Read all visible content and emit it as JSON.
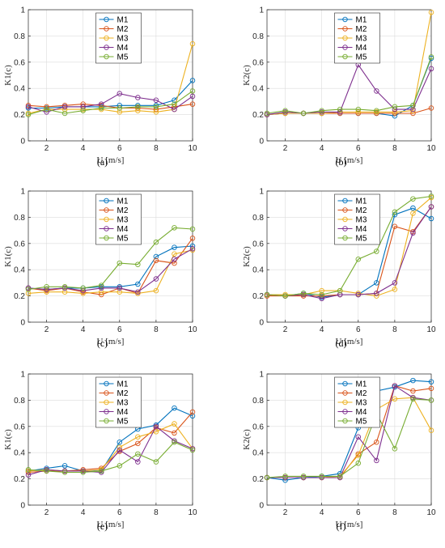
{
  "colors": [
    "#0072BD",
    "#D95319",
    "#EDB120",
    "#7E2F8E",
    "#77AC30"
  ],
  "chart_data": [
    {
      "type": "line",
      "panel": "(a)",
      "xlabel": "U [m/s]",
      "ylabel": "K1(c)",
      "xlim": [
        1,
        10
      ],
      "ylim": [
        0,
        1
      ],
      "xticks": [
        2,
        4,
        6,
        8,
        10
      ],
      "yticks": [
        0,
        0.2,
        0.4,
        0.6,
        0.8,
        1
      ],
      "grid": true,
      "legend": "top-center",
      "x": [
        1,
        2,
        3,
        4,
        5,
        6,
        7,
        8,
        9,
        10
      ],
      "series": [
        {
          "name": "M1",
          "values": [
            0.25,
            0.25,
            0.26,
            0.26,
            0.26,
            0.27,
            0.27,
            0.27,
            0.31,
            0.46
          ]
        },
        {
          "name": "M2",
          "values": [
            0.27,
            0.26,
            0.27,
            0.28,
            0.27,
            0.25,
            0.25,
            0.24,
            0.26,
            0.28
          ]
        },
        {
          "name": "M3",
          "values": [
            0.21,
            0.24,
            0.24,
            0.24,
            0.24,
            0.22,
            0.23,
            0.22,
            0.24,
            0.74
          ]
        },
        {
          "name": "M4",
          "values": [
            0.26,
            0.22,
            0.26,
            0.26,
            0.28,
            0.36,
            0.33,
            0.31,
            0.24,
            0.34
          ]
        },
        {
          "name": "M5",
          "values": [
            0.2,
            0.24,
            0.21,
            0.23,
            0.25,
            0.25,
            0.26,
            0.26,
            0.28,
            0.38
          ]
        }
      ]
    },
    {
      "type": "line",
      "panel": "(b)",
      "xlabel": "U [m/s]",
      "ylabel": "K2(c)",
      "xlim": [
        1,
        10
      ],
      "ylim": [
        0,
        1
      ],
      "xticks": [
        2,
        4,
        6,
        8,
        10
      ],
      "yticks": [
        0,
        0.2,
        0.4,
        0.6,
        0.8,
        1
      ],
      "grid": true,
      "legend": "top-center",
      "x": [
        1,
        2,
        3,
        4,
        5,
        6,
        7,
        8,
        9,
        10
      ],
      "series": [
        {
          "name": "M1",
          "values": [
            0.2,
            0.21,
            0.21,
            0.21,
            0.21,
            0.21,
            0.21,
            0.19,
            0.27,
            0.63
          ]
        },
        {
          "name": "M2",
          "values": [
            0.2,
            0.21,
            0.21,
            0.21,
            0.21,
            0.21,
            0.21,
            0.21,
            0.21,
            0.25
          ]
        },
        {
          "name": "M3",
          "values": [
            0.2,
            0.21,
            0.21,
            0.21,
            0.22,
            0.22,
            0.22,
            0.22,
            0.23,
            0.98
          ]
        },
        {
          "name": "M4",
          "values": [
            0.2,
            0.22,
            0.21,
            0.22,
            0.22,
            0.58,
            0.38,
            0.24,
            0.24,
            0.55
          ]
        },
        {
          "name": "M5",
          "values": [
            0.21,
            0.23,
            0.21,
            0.23,
            0.24,
            0.24,
            0.23,
            0.26,
            0.27,
            0.64
          ]
        }
      ]
    },
    {
      "type": "line",
      "panel": "(c)",
      "xlabel": "U [m/s]",
      "ylabel": "K1(c)",
      "xlim": [
        1,
        10
      ],
      "ylim": [
        0,
        1
      ],
      "xticks": [
        2,
        4,
        6,
        8,
        10
      ],
      "yticks": [
        0,
        0.2,
        0.4,
        0.6,
        0.8,
        1
      ],
      "grid": true,
      "legend": "top-center",
      "x": [
        1,
        2,
        3,
        4,
        5,
        6,
        7,
        8,
        9,
        10
      ],
      "series": [
        {
          "name": "M1",
          "values": [
            0.26,
            0.25,
            0.26,
            0.26,
            0.27,
            0.27,
            0.29,
            0.5,
            0.57,
            0.58
          ]
        },
        {
          "name": "M2",
          "values": [
            0.26,
            0.24,
            0.26,
            0.23,
            0.21,
            0.26,
            0.22,
            0.47,
            0.45,
            0.64
          ]
        },
        {
          "name": "M3",
          "values": [
            0.22,
            0.23,
            0.23,
            0.22,
            0.23,
            0.23,
            0.22,
            0.24,
            0.52,
            0.55
          ]
        },
        {
          "name": "M4",
          "values": [
            0.26,
            0.25,
            0.26,
            0.24,
            0.26,
            0.26,
            0.23,
            0.33,
            0.48,
            0.56
          ]
        },
        {
          "name": "M5",
          "values": [
            0.25,
            0.27,
            0.27,
            0.26,
            0.28,
            0.45,
            0.44,
            0.61,
            0.72,
            0.71
          ]
        }
      ]
    },
    {
      "type": "line",
      "panel": "(d)",
      "xlabel": "U [m/s]",
      "ylabel": "K2(c)",
      "xlim": [
        1,
        10
      ],
      "ylim": [
        0,
        1
      ],
      "xticks": [
        2,
        4,
        6,
        8,
        10
      ],
      "yticks": [
        0,
        0.2,
        0.4,
        0.6,
        0.8,
        1
      ],
      "grid": true,
      "legend": "top-center",
      "x": [
        1,
        2,
        3,
        4,
        5,
        6,
        7,
        8,
        9,
        10
      ],
      "series": [
        {
          "name": "M1",
          "values": [
            0.21,
            0.2,
            0.22,
            0.19,
            0.21,
            0.21,
            0.3,
            0.82,
            0.87,
            0.79
          ]
        },
        {
          "name": "M2",
          "values": [
            0.2,
            0.2,
            0.2,
            0.2,
            0.21,
            0.21,
            0.22,
            0.73,
            0.69,
            0.88
          ]
        },
        {
          "name": "M3",
          "values": [
            0.21,
            0.21,
            0.21,
            0.24,
            0.24,
            0.22,
            0.2,
            0.25,
            0.83,
            0.95
          ]
        },
        {
          "name": "M4",
          "values": [
            0.21,
            0.2,
            0.21,
            0.18,
            0.21,
            0.21,
            0.22,
            0.3,
            0.68,
            0.88
          ]
        },
        {
          "name": "M5",
          "values": [
            0.21,
            0.2,
            0.22,
            0.21,
            0.24,
            0.48,
            0.54,
            0.84,
            0.94,
            0.96
          ]
        }
      ]
    },
    {
      "type": "line",
      "panel": "(e)",
      "xlabel": "U [m/s]",
      "ylabel": "K1(c)",
      "xlim": [
        1,
        10
      ],
      "ylim": [
        0,
        1
      ],
      "xticks": [
        2,
        4,
        6,
        8,
        10
      ],
      "yticks": [
        0,
        0.2,
        0.4,
        0.6,
        0.8,
        1
      ],
      "grid": true,
      "legend": "top-center",
      "x": [
        1,
        2,
        3,
        4,
        5,
        6,
        7,
        8,
        9,
        10
      ],
      "series": [
        {
          "name": "M1",
          "values": [
            0.26,
            0.28,
            0.3,
            0.26,
            0.26,
            0.48,
            0.58,
            0.61,
            0.74,
            0.68
          ]
        },
        {
          "name": "M2",
          "values": [
            0.25,
            0.26,
            0.26,
            0.27,
            0.28,
            0.41,
            0.47,
            0.59,
            0.55,
            0.71
          ]
        },
        {
          "name": "M3",
          "values": [
            0.26,
            0.27,
            0.26,
            0.26,
            0.27,
            0.44,
            0.52,
            0.56,
            0.62,
            0.43
          ]
        },
        {
          "name": "M4",
          "values": [
            0.23,
            0.27,
            0.26,
            0.26,
            0.25,
            0.42,
            0.33,
            0.6,
            0.49,
            0.43
          ]
        },
        {
          "name": "M5",
          "values": [
            0.27,
            0.26,
            0.25,
            0.25,
            0.26,
            0.3,
            0.39,
            0.33,
            0.48,
            0.42
          ]
        }
      ]
    },
    {
      "type": "line",
      "panel": "(f)",
      "xlabel": "U [m/s]",
      "ylabel": "K2(c)",
      "xlim": [
        1,
        10
      ],
      "ylim": [
        0,
        1
      ],
      "xticks": [
        2,
        4,
        6,
        8,
        10
      ],
      "yticks": [
        0,
        0.2,
        0.4,
        0.6,
        0.8,
        1
      ],
      "grid": true,
      "legend": "top-center",
      "x": [
        1,
        2,
        3,
        4,
        5,
        6,
        7,
        8,
        9,
        10
      ],
      "series": [
        {
          "name": "M1",
          "values": [
            0.21,
            0.19,
            0.21,
            0.22,
            0.24,
            0.59,
            0.87,
            0.9,
            0.95,
            0.94
          ]
        },
        {
          "name": "M2",
          "values": [
            0.21,
            0.21,
            0.21,
            0.21,
            0.21,
            0.39,
            0.48,
            0.91,
            0.87,
            0.89
          ]
        },
        {
          "name": "M3",
          "values": [
            0.21,
            0.21,
            0.21,
            0.21,
            0.22,
            0.38,
            0.73,
            0.81,
            0.82,
            0.57
          ]
        },
        {
          "name": "M4",
          "values": [
            0.21,
            0.21,
            0.21,
            0.21,
            0.21,
            0.52,
            0.34,
            0.91,
            0.82,
            0.8
          ]
        },
        {
          "name": "M5",
          "values": [
            0.21,
            0.22,
            0.22,
            0.22,
            0.22,
            0.32,
            0.7,
            0.43,
            0.81,
            0.8
          ]
        }
      ]
    }
  ]
}
